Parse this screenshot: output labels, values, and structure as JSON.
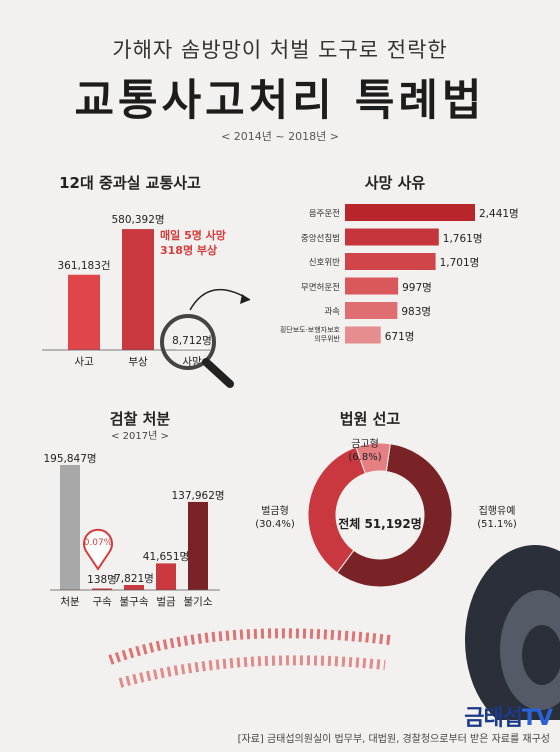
{
  "header": {
    "subtitle": "가해자 솜방망이 처벌 도구로 전락한",
    "title": "교통사고처리 특례법",
    "period": "< 2014년 ~ 2018년 >"
  },
  "colors": {
    "red": "#e0454a",
    "dark_red": "#7a2326",
    "gray": "#a8a8a8",
    "pink": "#d98c8e"
  },
  "chart_data": [
    {
      "type": "bar",
      "title": "12대 중과실 교통사고",
      "categories": [
        "사고",
        "부상",
        "사망"
      ],
      "values": [
        361183,
        580392,
        8712
      ],
      "value_labels": [
        "361,183건",
        "580,392명",
        "8,712명"
      ],
      "annotation": [
        "매일 5명 사망",
        "318명 부상"
      ],
      "ylim": [
        0,
        600000
      ]
    },
    {
      "type": "bar",
      "orientation": "horizontal",
      "title": "사망 사유",
      "categories": [
        "음주운전",
        "중앙선침범",
        "신호위반",
        "무면허운전",
        "과속",
        "횡단보도·보행자보호 의무위반"
      ],
      "category_lines": [
        [
          "음주운전"
        ],
        [
          "중앙선침범"
        ],
        [
          "신호위반"
        ],
        [
          "무면허운전"
        ],
        [
          "과속"
        ],
        [
          "횡단보도·보행자보호",
          "의무위반"
        ]
      ],
      "values": [
        2441,
        1761,
        1701,
        997,
        983,
        671
      ],
      "value_labels": [
        "2,441명",
        "1,761명",
        "1,701명",
        "997명",
        "983명",
        "671명"
      ],
      "xlim": [
        0,
        2441
      ]
    },
    {
      "type": "bar",
      "title": "검찰 처분",
      "subtitle": "< 2017년 >",
      "categories": [
        "처분",
        "구속",
        "불구속",
        "벌금",
        "불기소"
      ],
      "values": [
        195847,
        138,
        7821,
        41651,
        137962
      ],
      "value_labels": [
        "195,847명",
        "138명",
        "7,821명",
        "41,651명",
        "137,962명"
      ],
      "annotation": "0.07%",
      "ylim": [
        0,
        195847
      ]
    },
    {
      "type": "pie",
      "title": "법원 선고",
      "center_label": "전체 51,192명",
      "slices": [
        {
          "name": "집행유예",
          "percent": 51.1,
          "label": [
            "집행유예",
            "(51.1%)"
          ]
        },
        {
          "name": "벌금형",
          "percent": 30.4,
          "label": [
            "벌금형",
            "(30.4%)"
          ]
        },
        {
          "name": "금고형",
          "percent": 6.8,
          "label": [
            "금고형",
            "(6.8%)"
          ]
        }
      ]
    }
  ],
  "footer": {
    "source": "[자료] 금태섭의원실이 법무부, 대법원, 경찰청으로부터 받은 자료를 재구성",
    "logo_main": "금태섭",
    "logo_tv": "TV"
  }
}
